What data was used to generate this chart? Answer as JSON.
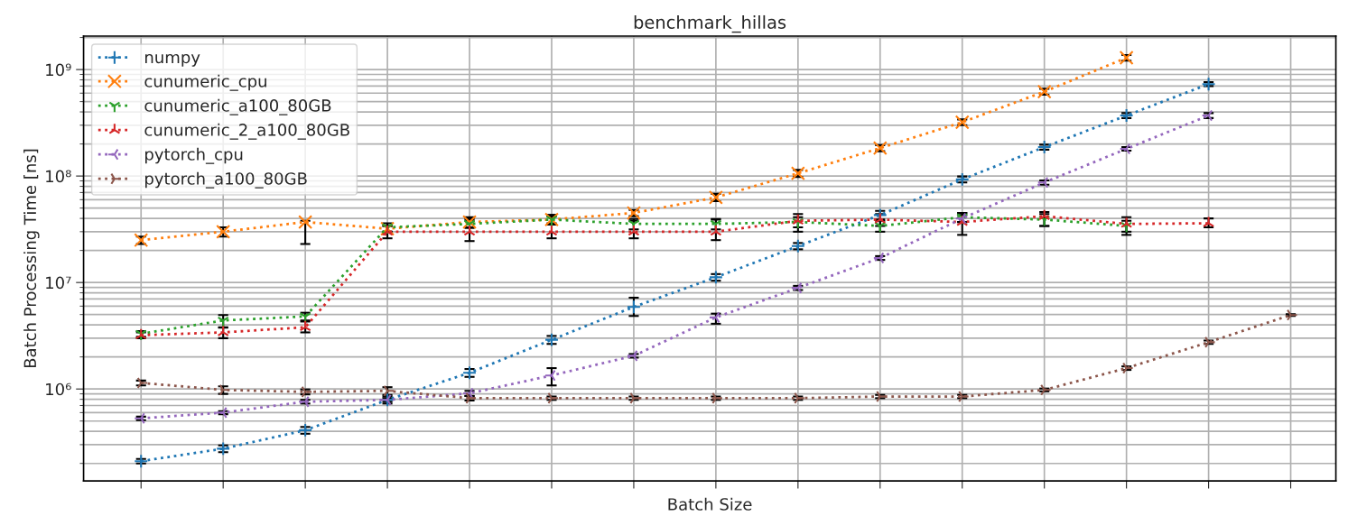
{
  "chart_data": {
    "type": "line",
    "title": "benchmark_hillas",
    "xlabel": "Batch Size",
    "ylabel": "Batch Processing Time [ns]",
    "categories": [
      null,
      null,
      null,
      null,
      null,
      null,
      null,
      null,
      null,
      null,
      null,
      null,
      null,
      null,
      null
    ],
    "log": "y",
    "ylim": [
      137000,
      2060000000
    ],
    "yticks": [
      {
        "value": 1000000,
        "label": "10⁶"
      },
      {
        "value": 10000000,
        "label": "10⁷"
      },
      {
        "value": 100000000,
        "label": "10⁸"
      },
      {
        "value": 1000000000,
        "label": "10⁹"
      }
    ],
    "grid": true,
    "legend": "top left",
    "line_style": "dotted",
    "series": [
      {
        "name": "numpy",
        "color": "#1f77b4",
        "marker": "cross",
        "values": [
          210000,
          275000,
          410000,
          790000,
          1420000,
          2900000,
          5900000,
          11200000,
          22000000,
          43000000,
          93000000,
          187000000,
          370000000,
          730000000,
          null
        ],
        "errors": [
          10000,
          20000,
          30000,
          60000,
          120000,
          250000,
          [
            4850000,
            7200000
          ],
          800000,
          1500000,
          4000000,
          6000000,
          10000000,
          20000000,
          30000000,
          null
        ]
      },
      {
        "name": "cunumeric_cpu",
        "color": "#ff7f0e",
        "marker": "cross",
        "values": [
          25000000,
          30000000,
          37000000,
          32000000,
          37000000,
          39000000,
          45000000,
          63000000,
          106000000,
          183000000,
          320000000,
          620000000,
          1290000000,
          null,
          null
        ],
        "errors": [
          2000000,
          3000000,
          [
            23000000,
            38000000
          ],
          2000000,
          4000000,
          3000000,
          3000000,
          5000000,
          8000000,
          12000000,
          20000000,
          40000000,
          80000000,
          null,
          null
        ]
      },
      {
        "name": "cunumeric_a100_80GB",
        "color": "#2ca02c",
        "marker": "cross",
        "values": [
          3300000,
          4400000,
          4800000,
          33000000,
          35500000,
          39000000,
          35500000,
          35500000,
          37000000,
          34000000,
          41000000,
          39000000,
          34000000,
          null,
          null
        ],
        "errors": [
          200000,
          [
            3770000,
            4950000
          ],
          400000,
          3000000,
          3000000,
          4000000,
          4000000,
          4000000,
          4000000,
          4000000,
          4000000,
          5000000,
          4000000,
          null,
          null
        ]
      },
      {
        "name": "cunumeric_2_a100_80GB",
        "color": "#d62728",
        "marker": "cross",
        "values": [
          3200000,
          3400000,
          3800000,
          30000000,
          30000000,
          30000000,
          30000000,
          30000000,
          38000000,
          39000000,
          37000000,
          42000000,
          35500000,
          36000000,
          null
        ],
        "errors": [
          200000,
          400000,
          [
            3400000,
            4300000
          ],
          4000000,
          [
            24500000,
            40000000
          ],
          [
            26000000,
            43000000
          ],
          [
            26000000,
            38000000
          ],
          [
            25000000,
            39000000
          ],
          [
            30000000,
            44000000
          ],
          5000000,
          [
            28000000,
            45000000
          ],
          [
            34000000,
            46000000
          ],
          [
            28000000,
            41000000
          ],
          [
            33000000,
            40000000
          ],
          null
        ]
      },
      {
        "name": "pytorch_cpu",
        "color": "#9467bd",
        "marker": "cross",
        "values": [
          530000,
          600000,
          760000,
          790000,
          910000,
          1340000,
          2050000,
          4700000,
          8900000,
          17000000,
          40000000,
          87000000,
          180000000,
          370000000,
          null
        ],
        "errors": [
          20000,
          20000,
          30000,
          30000,
          50000,
          [
            1080000,
            1570000
          ],
          80000,
          [
            4100000,
            5100000
          ],
          400000,
          700000,
          3000000,
          4000000,
          7000000,
          20000000,
          null
        ]
      },
      {
        "name": "pytorch_a100_80GB",
        "color": "#8c564b",
        "marker": "cross",
        "values": [
          1140000,
          980000,
          940000,
          960000,
          820000,
          820000,
          820000,
          820000,
          820000,
          850000,
          850000,
          980000,
          1570000,
          2750000,
          4950000
        ],
        "errors": [
          60000,
          80000,
          50000,
          80000,
          40000,
          30000,
          30000,
          30000,
          30000,
          30000,
          30000,
          30000,
          60000,
          100000,
          100000
        ]
      }
    ]
  }
}
